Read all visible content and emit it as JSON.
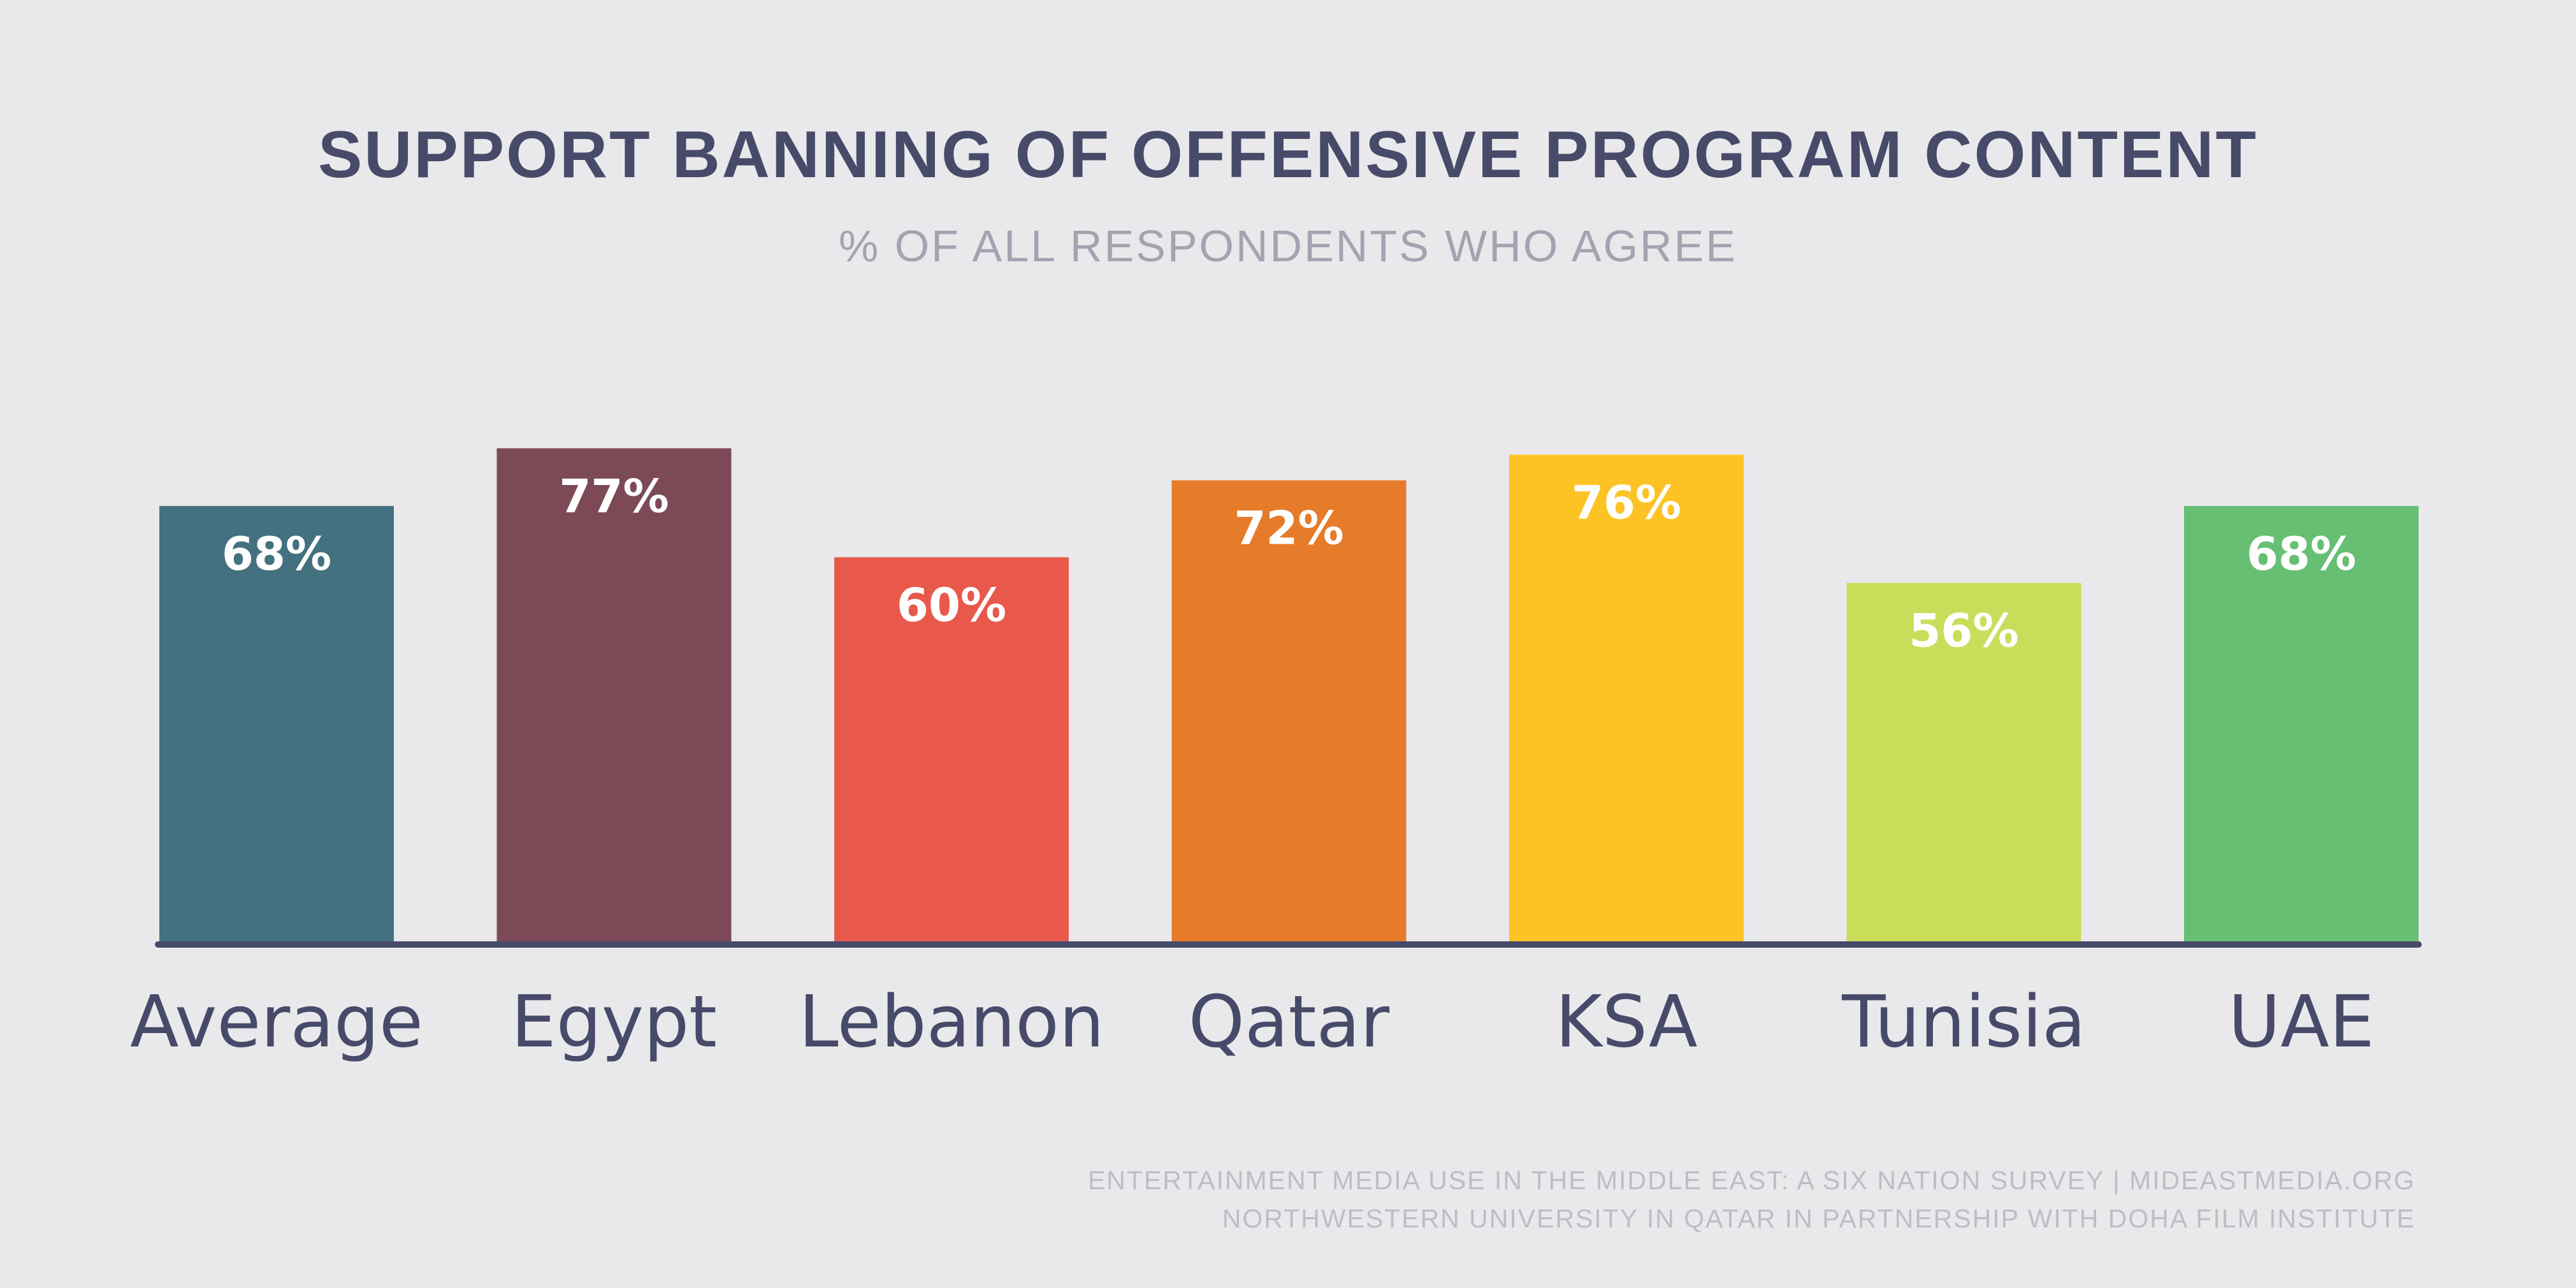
{
  "chart_data": {
    "type": "bar",
    "title": "SUPPORT BANNING OF OFFENSIVE PROGRAM CONTENT",
    "subtitle": "% OF ALL RESPONDENTS WHO AGREE",
    "categories": [
      "Average",
      "Egypt",
      "Lebanon",
      "Qatar",
      "KSA",
      "Tunisia",
      "UAE"
    ],
    "values": [
      68,
      77,
      60,
      72,
      76,
      56,
      68
    ],
    "value_labels": [
      "68%",
      "77%",
      "60%",
      "72%",
      "76%",
      "56%",
      "68%"
    ],
    "colors": [
      "#43717f",
      "#7c4a57",
      "#e8594c",
      "#e67b2a",
      "#fdc325",
      "#cadd5a",
      "#66bf73"
    ],
    "ylim": [
      0,
      100
    ],
    "grid": false,
    "legend": "none",
    "baseline_color": "#484a6a"
  },
  "source": {
    "line1": "ENTERTAINMENT MEDIA USE IN THE MIDDLE EAST: A SIX NATION SURVEY | MIDEASTMEDIA.ORG",
    "line2": "NORTHWESTERN UNIVERSITY IN QATAR IN PARTNERSHIP WITH DOHA FILM INSTITUTE"
  }
}
